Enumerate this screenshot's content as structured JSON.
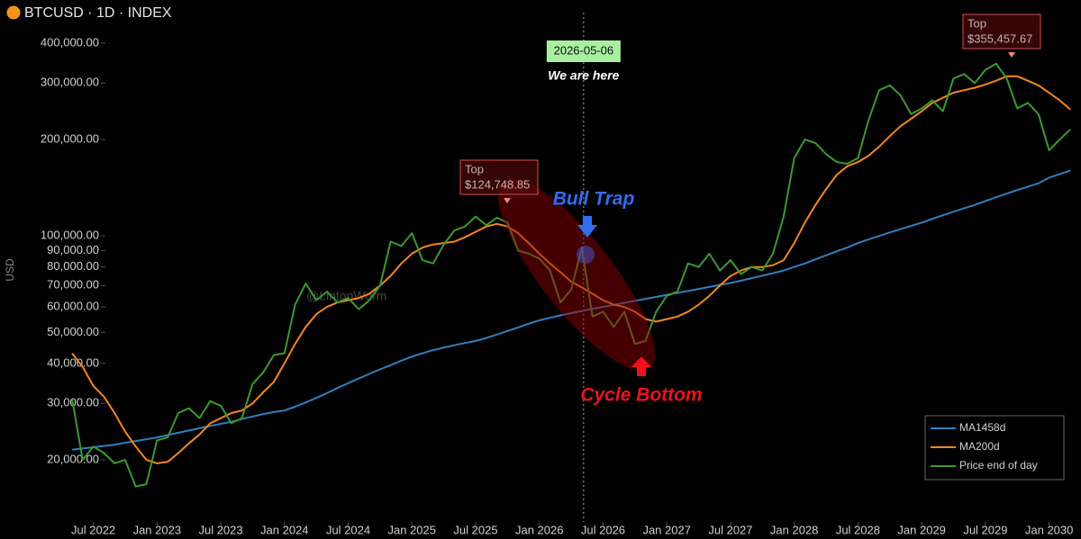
{
  "header": {
    "title": "BTCUSD · 1D · INDEX"
  },
  "chart_data": {
    "type": "line",
    "y_label": "USD",
    "log_y": true,
    "grid": false,
    "legend": "bottom-right",
    "watermark": "@LintonWorm",
    "xlim": [
      "2022-05",
      "2030-04"
    ],
    "xticks": [
      {
        "value": "2022-07",
        "label": "Jul 2022"
      },
      {
        "value": "2023-01",
        "label": "Jan 2023"
      },
      {
        "value": "2023-07",
        "label": "Jul 2023"
      },
      {
        "value": "2024-01",
        "label": "Jan 2024"
      },
      {
        "value": "2024-07",
        "label": "Jul 2024"
      },
      {
        "value": "2025-01",
        "label": "Jan 2025"
      },
      {
        "value": "2025-07",
        "label": "Jul 2025"
      },
      {
        "value": "2026-01",
        "label": "Jan 2026"
      },
      {
        "value": "2026-07",
        "label": "Jul 2026"
      },
      {
        "value": "2027-01",
        "label": "Jan 2027"
      },
      {
        "value": "2027-07",
        "label": "Jul 2027"
      },
      {
        "value": "2028-01",
        "label": "Jan 2028"
      },
      {
        "value": "2028-07",
        "label": "Jul 2028"
      },
      {
        "value": "2029-01",
        "label": "Jan 2029"
      },
      {
        "value": "2029-07",
        "label": "Jul 2029"
      },
      {
        "value": "2030-01",
        "label": "Jan 2030"
      }
    ],
    "ylim": [
      12800,
      545000
    ],
    "yticks": [
      {
        "value": 20000,
        "label": "20,000.00"
      },
      {
        "value": 30000,
        "label": "30,000.00"
      },
      {
        "value": 40000,
        "label": "40,000.00"
      },
      {
        "value": 50000,
        "label": "50,000.00"
      },
      {
        "value": 60000,
        "label": "60,000.00"
      },
      {
        "value": 70000,
        "label": "70,000.00"
      },
      {
        "value": 80000,
        "label": "80,000.00"
      },
      {
        "value": 90000,
        "label": "90,000.00"
      },
      {
        "value": 100000,
        "label": "100,000.00"
      },
      {
        "value": 200000,
        "label": "200,000.00"
      },
      {
        "value": 300000,
        "label": "300,000.00"
      },
      {
        "value": 400000,
        "label": "400,000.00"
      }
    ],
    "x": [
      "2022-05",
      "2022-06",
      "2022-07",
      "2022-08",
      "2022-09",
      "2022-10",
      "2022-11",
      "2022-12",
      "2023-01",
      "2023-02",
      "2023-03",
      "2023-04",
      "2023-05",
      "2023-06",
      "2023-07",
      "2023-08",
      "2023-09",
      "2023-10",
      "2023-11",
      "2023-12",
      "2024-01",
      "2024-02",
      "2024-03",
      "2024-04",
      "2024-05",
      "2024-06",
      "2024-07",
      "2024-08",
      "2024-09",
      "2024-10",
      "2024-11",
      "2024-12",
      "2025-01",
      "2025-02",
      "2025-03",
      "2025-04",
      "2025-05",
      "2025-06",
      "2025-07",
      "2025-08",
      "2025-09",
      "2025-10",
      "2025-11",
      "2025-12",
      "2026-01",
      "2026-02",
      "2026-03",
      "2026-04",
      "2026-05",
      "2026-06",
      "2026-07",
      "2026-08",
      "2026-09",
      "2026-10",
      "2026-11",
      "2026-12",
      "2027-01",
      "2027-02",
      "2027-03",
      "2027-04",
      "2027-05",
      "2027-06",
      "2027-07",
      "2027-08",
      "2027-09",
      "2027-10",
      "2027-11",
      "2027-12",
      "2028-01",
      "2028-02",
      "2028-03",
      "2028-04",
      "2028-05",
      "2028-06",
      "2028-07",
      "2028-08",
      "2028-09",
      "2028-10",
      "2028-11",
      "2028-12",
      "2029-01",
      "2029-02",
      "2029-03",
      "2029-04",
      "2029-05",
      "2029-06",
      "2029-07",
      "2029-08",
      "2029-09",
      "2029-10",
      "2029-11",
      "2029-12",
      "2030-01",
      "2030-02",
      "2030-03"
    ],
    "series": [
      {
        "name": "MA1458d",
        "color": "#2e7fc0",
        "values": [
          21500,
          21700,
          21900,
          22100,
          22300,
          22600,
          22900,
          23200,
          23500,
          23900,
          24300,
          24700,
          25100,
          25500,
          25900,
          26300,
          26800,
          27300,
          27800,
          28200,
          28500,
          29300,
          30200,
          31200,
          32300,
          33500,
          34700,
          35900,
          37100,
          38300,
          39500,
          40800,
          42000,
          43000,
          44000,
          44800,
          45600,
          46300,
          47000,
          48000,
          49200,
          50500,
          51800,
          53200,
          54500,
          55500,
          56500,
          57400,
          58300,
          59200,
          60000,
          60900,
          61800,
          62700,
          63600,
          64500,
          65500,
          66400,
          67300,
          68300,
          69300,
          70300,
          71300,
          72500,
          73800,
          75100,
          76500,
          78000,
          80000,
          82000,
          84500,
          87000,
          89500,
          92000,
          95000,
          97500,
          100000,
          102500,
          105000,
          107500,
          110000,
          113000,
          116000,
          119000,
          122000,
          125000,
          128500,
          132000,
          135500,
          139000,
          142500,
          146000,
          152000,
          156000,
          160000
        ]
      },
      {
        "name": "MA200d",
        "color": "#f5861f",
        "values": [
          43000,
          39000,
          34000,
          31500,
          28000,
          24500,
          22000,
          20000,
          19500,
          19700,
          21000,
          22500,
          24000,
          26000,
          27000,
          28000,
          28500,
          30000,
          32500,
          35000,
          40000,
          46000,
          52000,
          57000,
          60000,
          62000,
          63000,
          64000,
          66000,
          70000,
          75000,
          82000,
          88000,
          92000,
          94000,
          95000,
          96000,
          99000,
          103000,
          107000,
          109000,
          107000,
          102000,
          95000,
          88000,
          82000,
          77000,
          72000,
          69000,
          66000,
          63000,
          61000,
          60000,
          58000,
          55000,
          54000,
          55000,
          56000,
          58000,
          61000,
          65000,
          70000,
          75000,
          78000,
          80000,
          80000,
          81000,
          84000,
          95000,
          110000,
          125000,
          140000,
          155000,
          165000,
          170000,
          178000,
          190000,
          205000,
          220000,
          232000,
          245000,
          260000,
          270000,
          280000,
          285000,
          290000,
          297000,
          305000,
          315000,
          315000,
          305000,
          295000,
          280000,
          265000,
          248000
        ]
      },
      {
        "name": "Price end of day",
        "color": "#3a9a2c",
        "values": [
          31000,
          20000,
          22000,
          21000,
          19500,
          20000,
          16500,
          16800,
          23000,
          23500,
          28000,
          29000,
          27000,
          30500,
          29500,
          26000,
          27000,
          34500,
          37500,
          42500,
          43000,
          61000,
          71000,
          63000,
          67000,
          62000,
          64000,
          59000,
          63000,
          70000,
          96000,
          93000,
          102000,
          84000,
          82000,
          94000,
          104000,
          107000,
          115000,
          108000,
          114000,
          110000,
          90000,
          88000,
          85000,
          78000,
          62000,
          68000,
          92000,
          56000,
          58000,
          52000,
          58000,
          46000,
          47000,
          58000,
          65000,
          67000,
          82000,
          80000,
          88000,
          78000,
          84000,
          76000,
          80000,
          78000,
          88000,
          115000,
          175000,
          200000,
          195000,
          180000,
          170000,
          168000,
          175000,
          230000,
          285000,
          295000,
          275000,
          240000,
          250000,
          265000,
          245000,
          310000,
          320000,
          300000,
          330000,
          345000,
          310000,
          250000,
          260000,
          240000,
          185000,
          200000,
          215000
        ]
      }
    ],
    "annotations": {
      "current_date": "2026-05-06",
      "current_note": "We are here",
      "bull_trap": "Bull Trap",
      "cycle_bottom": "Cycle Bottom",
      "top1_title": "Top",
      "top1_price": "$124,748.85",
      "top2_title": "Top",
      "top2_price": "$355,457.67"
    }
  }
}
